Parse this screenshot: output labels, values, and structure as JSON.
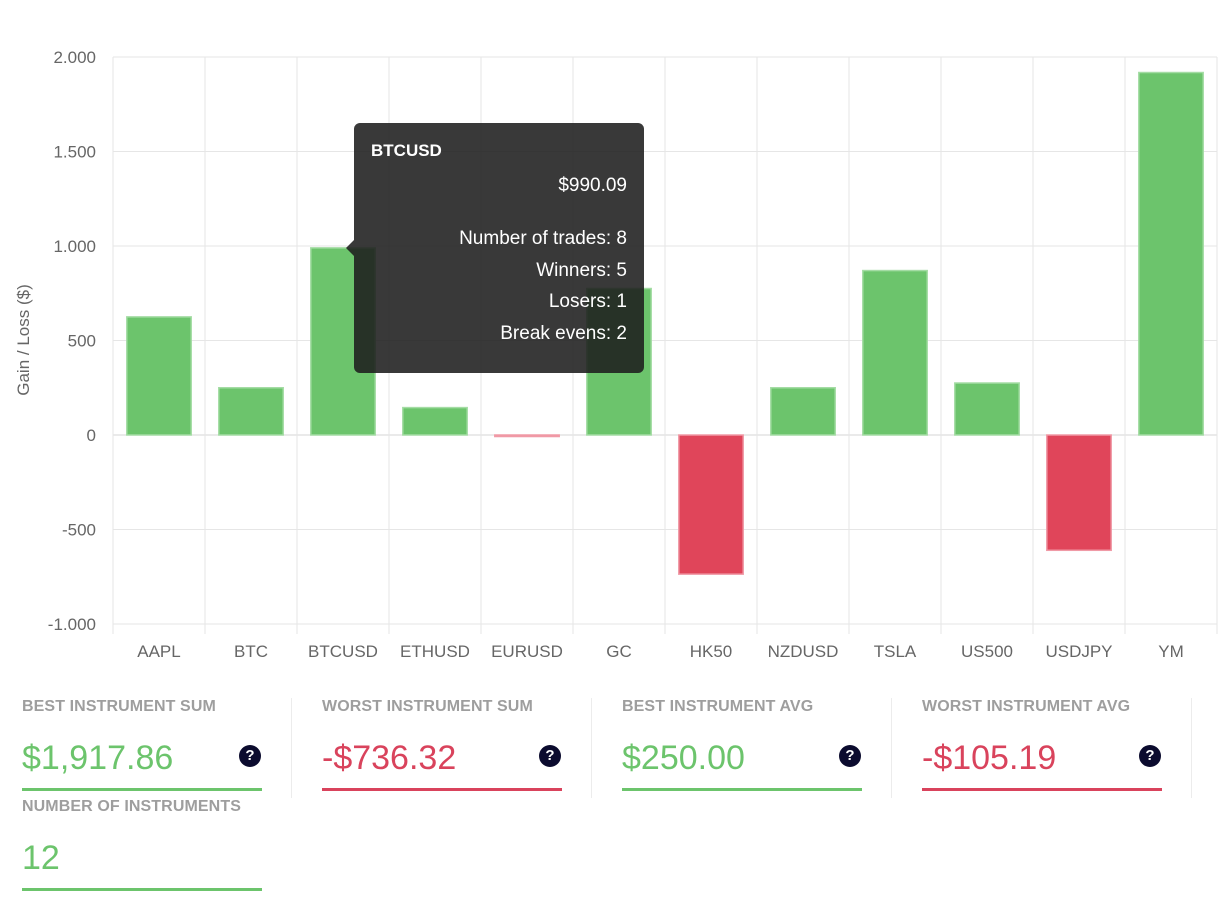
{
  "chart_data": {
    "type": "bar",
    "ylabel": "Gain / Loss ($)",
    "ylim": [
      -1000,
      2000
    ],
    "yticks": [
      2000,
      1500,
      1000,
      500,
      0,
      -500,
      -1000
    ],
    "ytick_labels": [
      "2.000",
      "1.500",
      "1.000",
      "500",
      "0",
      "-500",
      "-1.000"
    ],
    "categories": [
      "AAPL",
      "BTC",
      "BTCUSD",
      "ETHUSD",
      "EURUSD",
      "GC",
      "HK50",
      "NZDUSD",
      "TSLA",
      "US500",
      "USDJPY",
      "YM"
    ],
    "values": [
      625,
      250,
      990.09,
      145,
      -8,
      775,
      -736.32,
      250,
      870,
      275,
      -610,
      1917.86
    ],
    "positive_color": "#6cc46c",
    "negative_color": "#e0455a",
    "grid": true
  },
  "tooltip": {
    "title": "BTCUSD",
    "value": "$990.09",
    "lines": [
      "Number of trades: 8",
      "Winners: 5",
      "Losers: 1",
      "Break evens: 2"
    ]
  },
  "stats": [
    {
      "label": "BEST INSTRUMENT SUM",
      "value": "$1,917.86",
      "color": "#6cc46c",
      "help": "?"
    },
    {
      "label": "WORST INSTRUMENT SUM",
      "value": "-$736.32",
      "color": "#d9435c",
      "help": "?"
    },
    {
      "label": "BEST INSTRUMENT AVG",
      "value": "$250.00",
      "color": "#6cc46c",
      "help": "?"
    },
    {
      "label": "WORST INSTRUMENT AVG",
      "value": "-$105.19",
      "color": "#d9435c",
      "help": "?"
    },
    {
      "label": "NUMBER OF INSTRUMENTS",
      "value": "12",
      "color": "#6cc46c"
    }
  ]
}
